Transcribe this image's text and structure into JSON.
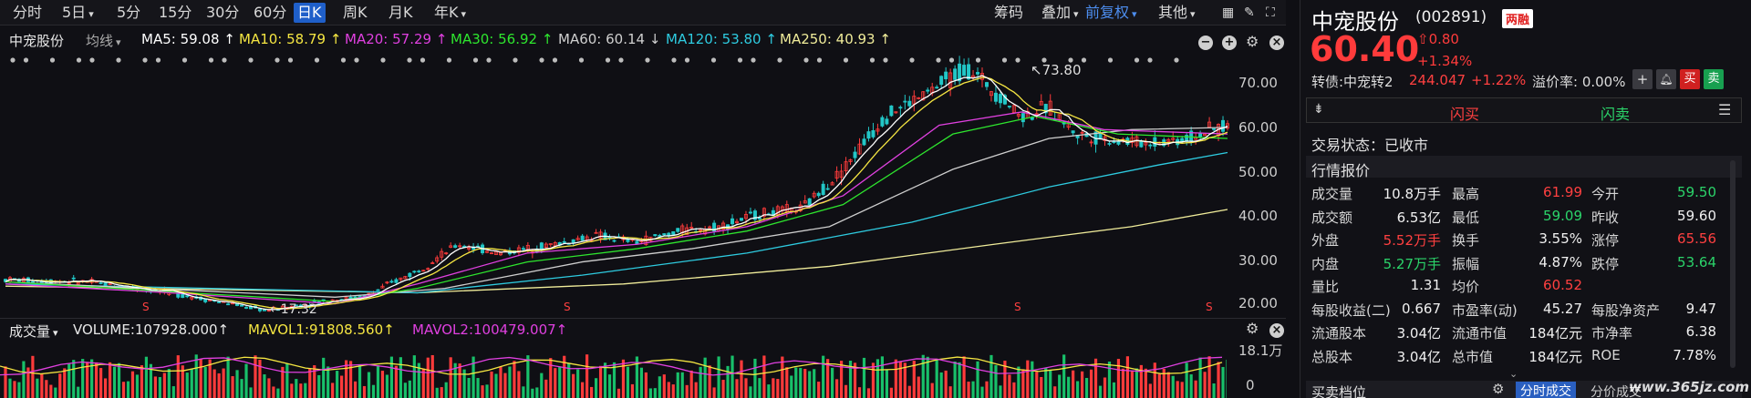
{
  "toolbar": {
    "periods": [
      "分时",
      "5日",
      "5分",
      "15分",
      "30分",
      "60分",
      "日K",
      "周K",
      "月K",
      "年K"
    ],
    "active_period": "日K",
    "right_items": [
      "筹码",
      "叠加",
      "前复权",
      "其他"
    ]
  },
  "indicators": {
    "stock_name": "中宠股份",
    "line_type": "均线",
    "ma5": "MA5: 59.08 ↑",
    "ma10": "MA10: 58.79 ↑",
    "ma20": "MA20: 57.29 ↑",
    "ma30": "MA30: 56.92 ↑",
    "ma60": "MA60: 60.14 ↓",
    "ma120": "MA120: 53.80 ↑",
    "ma250": "MA250: 40.93 ↑"
  },
  "colors": {
    "ma5": "#ffffff",
    "ma10": "#f5e642",
    "ma20": "#e040e0",
    "ma30": "#2ee62e",
    "ma60": "#cfcfcf",
    "ma120": "#2ecbe0",
    "ma250": "#f0ec9a",
    "up": "#ff3b3b",
    "down": "#22c7c7",
    "vol_up": "#ff3b3b",
    "vol_down": "#18c06a"
  },
  "chart_data": {
    "type": "candlestick",
    "y_ticks": [
      "70.00",
      "60.00",
      "50.00",
      "40.00",
      "30.00",
      "20.00"
    ],
    "ylim": [
      19,
      76
    ],
    "high_label": "73.80",
    "low_label": "17.32",
    "markers": [
      "S",
      "S",
      "S",
      "S"
    ],
    "trend_points": [
      [
        0,
        25
      ],
      [
        60,
        24.5
      ],
      [
        120,
        22
      ],
      [
        190,
        18
      ],
      [
        240,
        20.5
      ],
      [
        260,
        21
      ],
      [
        300,
        27
      ],
      [
        330,
        33
      ],
      [
        360,
        31
      ],
      [
        400,
        33
      ],
      [
        430,
        35
      ],
      [
        460,
        33.5
      ],
      [
        490,
        36
      ],
      [
        520,
        37
      ],
      [
        550,
        40
      ],
      [
        580,
        41
      ],
      [
        610,
        50
      ],
      [
        640,
        62
      ],
      [
        670,
        67
      ],
      [
        700,
        73
      ],
      [
        720,
        68
      ],
      [
        740,
        62
      ],
      [
        760,
        64
      ],
      [
        780,
        58
      ],
      [
        800,
        57
      ],
      [
        830,
        56
      ],
      [
        860,
        57
      ],
      [
        890,
        60
      ]
    ],
    "ma_lines": {
      "ma20": [
        [
          0,
          24
        ],
        [
          120,
          22
        ],
        [
          240,
          19.5
        ],
        [
          300,
          24
        ],
        [
          380,
          31
        ],
        [
          460,
          33
        ],
        [
          540,
          37
        ],
        [
          610,
          44
        ],
        [
          680,
          60
        ],
        [
          740,
          63
        ],
        [
          800,
          59
        ],
        [
          890,
          58
        ]
      ],
      "ma30": [
        [
          0,
          24.5
        ],
        [
          240,
          20
        ],
        [
          300,
          23
        ],
        [
          380,
          29
        ],
        [
          460,
          32
        ],
        [
          540,
          36
        ],
        [
          610,
          42
        ],
        [
          690,
          58
        ],
        [
          750,
          62
        ],
        [
          810,
          58
        ],
        [
          890,
          57
        ]
      ],
      "ma60": [
        [
          0,
          24.5
        ],
        [
          240,
          21
        ],
        [
          320,
          23
        ],
        [
          420,
          29
        ],
        [
          500,
          32
        ],
        [
          600,
          37
        ],
        [
          690,
          50
        ],
        [
          760,
          57
        ],
        [
          820,
          59
        ],
        [
          890,
          59.5
        ]
      ],
      "ma120": [
        [
          0,
          24
        ],
        [
          300,
          22
        ],
        [
          420,
          26
        ],
        [
          540,
          31
        ],
        [
          660,
          38
        ],
        [
          760,
          46
        ],
        [
          840,
          51
        ],
        [
          890,
          53.8
        ]
      ],
      "ma250": [
        [
          0,
          23.5
        ],
        [
          300,
          22
        ],
        [
          450,
          24
        ],
        [
          600,
          28
        ],
        [
          720,
          33
        ],
        [
          820,
          37
        ],
        [
          890,
          40.9
        ]
      ]
    }
  },
  "volume": {
    "label": "成交量",
    "volume": "VOLUME:107928.000↑",
    "mavol1": "MAVOL1:91808.560↑",
    "mavol2": "MAVOL2:100479.007↑",
    "top_tick": "18.1万",
    "bottom_tick": "0"
  },
  "quote": {
    "name": "中宠股份",
    "code": "(002891)",
    "badge": "两融",
    "price": "60.40",
    "change": "0.80",
    "change_pct": "+1.34%",
    "convertible": "转债:中宠转2",
    "cb_price": "244.047",
    "cb_pct": "+1.22%",
    "premium": "溢价率: 0.00%",
    "flash_buy": "闪买",
    "flash_sell": "闪卖",
    "status": "交易状态：已收市",
    "section": "行情报价",
    "rows": [
      [
        [
          "成交量",
          "10.8万手",
          "wht"
        ],
        [
          "最高",
          "61.99",
          "red"
        ],
        [
          "今开",
          "59.50",
          "grn"
        ]
      ],
      [
        [
          "成交额",
          "6.53亿",
          "wht"
        ],
        [
          "最低",
          "59.09",
          "grn"
        ],
        [
          "昨收",
          "59.60",
          "wht"
        ]
      ],
      [
        [
          "外盘",
          "5.52万手",
          "red"
        ],
        [
          "换手",
          "3.55%",
          "wht"
        ],
        [
          "涨停",
          "65.56",
          "red"
        ]
      ],
      [
        [
          "内盘",
          "5.27万手",
          "grn"
        ],
        [
          "振幅",
          "4.87%",
          "wht"
        ],
        [
          "跌停",
          "53.64",
          "grn"
        ]
      ],
      [
        [
          "量比",
          "1.31",
          "wht"
        ],
        [
          "均价",
          "60.52",
          "red"
        ],
        [
          "",
          "",
          " "
        ]
      ],
      [
        [
          "每股收益(二)",
          "0.667",
          "wht"
        ],
        [
          "市盈率(动)",
          "45.27",
          "wht"
        ],
        [
          "每股净资产",
          "9.47",
          "wht"
        ]
      ],
      [
        [
          "流通股本",
          "3.04亿",
          "wht"
        ],
        [
          "流通市值",
          "184亿元",
          "wht"
        ],
        [
          "市净率",
          "6.38",
          "wht"
        ]
      ],
      [
        [
          "总股本",
          "3.04亿",
          "wht"
        ],
        [
          "总市值",
          "184亿元",
          "wht"
        ],
        [
          "ROE",
          "7.78%",
          "wht"
        ]
      ]
    ],
    "bottom_left": "买卖档位",
    "bottom_tab": "分时成交",
    "bottom_tab2": "分价成交",
    "watermark": "www.365jz.com"
  }
}
